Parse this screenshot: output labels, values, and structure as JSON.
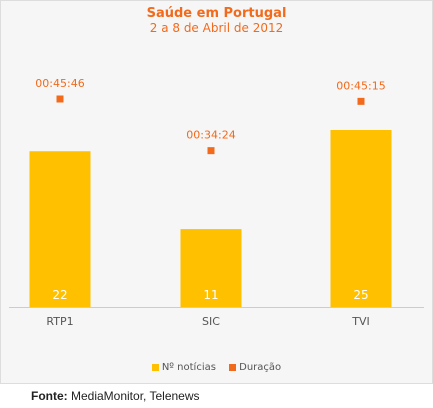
{
  "chart_data": {
    "type": "bar",
    "title": "Saúde em Portugal",
    "subtitle": "2 a 8 de Abril de 2012",
    "categories": [
      "RTP1",
      "SIC",
      "TVI"
    ],
    "series": [
      {
        "name": "Nº notícias",
        "type": "bar",
        "values": [
          22,
          11,
          25
        ],
        "color": "#ffc000"
      },
      {
        "name": "Duração",
        "type": "scatter",
        "values": [
          "00:45:46",
          "00:34:24",
          "00:45:15"
        ],
        "color": "#f26a1b"
      }
    ],
    "grid": false,
    "legend": "bottom"
  },
  "source": {
    "label": "Fonte:",
    "text": " MediaMonitor, Telenews"
  }
}
